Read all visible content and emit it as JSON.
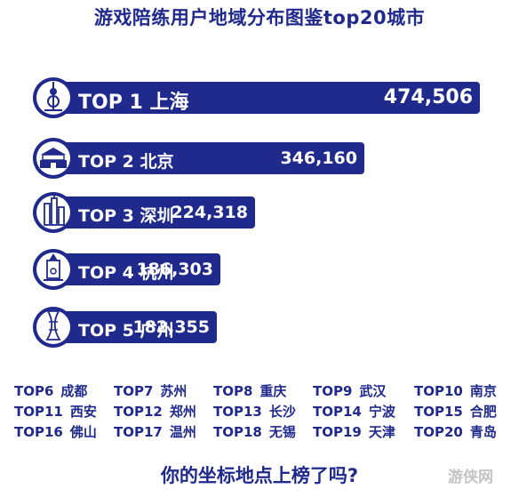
{
  "title": "游戏陪练用户地域分布图鉴top20城市",
  "chart_data": {
    "type": "bar",
    "orientation": "horizontal",
    "categories": [
      "TOP 1 上海",
      "TOP 2 北京",
      "TOP 3 深圳",
      "TOP 4 杭州",
      "TOP 5 广州"
    ],
    "values": [
      474506,
      346160,
      224318,
      186303,
      182355
    ],
    "value_labels": [
      "474,506",
      "346,160",
      "224,318",
      "186,303",
      "182,355"
    ],
    "bar_color": "#1f2a8c",
    "icons": [
      "shanghai-tower-icon",
      "tiananmen-icon",
      "shenzhen-skyline-icon",
      "hangzhou-pagoda-icon",
      "canton-tower-icon"
    ]
  },
  "others": [
    {
      "rank": "TOP6",
      "city": "成都"
    },
    {
      "rank": "TOP7",
      "city": "苏州"
    },
    {
      "rank": "TOP8",
      "city": "重庆"
    },
    {
      "rank": "TOP9",
      "city": "武汉"
    },
    {
      "rank": "TOP10",
      "city": "南京"
    },
    {
      "rank": "TOP11",
      "city": "西安"
    },
    {
      "rank": "TOP12",
      "city": "郑州"
    },
    {
      "rank": "TOP13",
      "city": "长沙"
    },
    {
      "rank": "TOP14",
      "city": "宁波"
    },
    {
      "rank": "TOP15",
      "city": "合肥"
    },
    {
      "rank": "TOP16",
      "city": "佛山"
    },
    {
      "rank": "TOP17",
      "city": "温州"
    },
    {
      "rank": "TOP18",
      "city": "无锡"
    },
    {
      "rank": "TOP19",
      "city": "天津"
    },
    {
      "rank": "TOP20",
      "city": "青岛"
    }
  ],
  "question": "你的坐标地点上榜了吗?",
  "watermark": "游侠网"
}
